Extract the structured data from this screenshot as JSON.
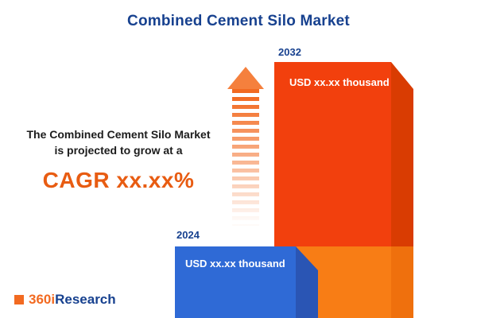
{
  "title": "Combined Cement Silo Market",
  "headline": {
    "line1": "The Combined Cement Silo Market",
    "line2": "is projected to grow at a",
    "cagr": "CAGR xx.xx%"
  },
  "chart_data": {
    "type": "bar",
    "categories": [
      "2024",
      "2032"
    ],
    "values": [
      "USD xx.xx thousand",
      "USD xx.xx thousand"
    ],
    "title": "Combined Cement Silo Market",
    "xlabel": "",
    "ylabel": "",
    "legend": "none",
    "layout": "two 3D bars, 2024 small blue at left, 2032 tall orange at right, dashed orange growth arrow between"
  },
  "logo": {
    "part1": "360i",
    "part2": "Research"
  },
  "colors": {
    "title_blue": "#17418f",
    "accent_orange": "#e85c12",
    "bar_2024_blue": "#2f6ad6",
    "bar_2032_orange": "#f2400d"
  }
}
